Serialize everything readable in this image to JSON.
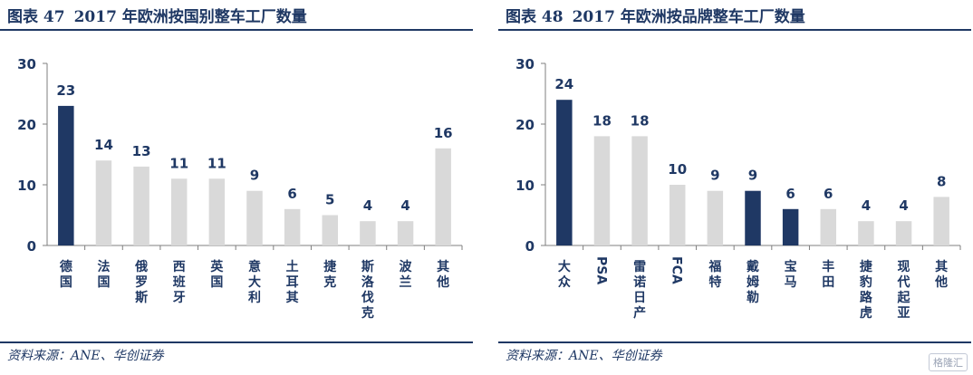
{
  "colors": {
    "dark": "#1f3864",
    "light": "#d9d9d9",
    "text": "#1f3864"
  },
  "charts": [
    {
      "figure_label": "图表 47",
      "title": "2017 年欧洲按国别整车工厂数量",
      "source": "资料来源：ANE、华创证券"
    },
    {
      "figure_label": "图表 48",
      "title": "2017 年欧洲按品牌整车工厂数量",
      "source": "资料来源：ANE、华创证券"
    }
  ],
  "chart_data": [
    {
      "type": "bar",
      "title": "2017 年欧洲按国别整车工厂数量",
      "categories": [
        "德国",
        "法国",
        "俄罗斯",
        "西班牙",
        "英国",
        "意大利",
        "土耳其",
        "捷克",
        "斯洛伐克",
        "波兰",
        "其他"
      ],
      "values": [
        23,
        14,
        13,
        11,
        11,
        9,
        6,
        5,
        4,
        4,
        16
      ],
      "highlight": [
        true,
        false,
        false,
        false,
        false,
        false,
        false,
        false,
        false,
        false,
        false
      ],
      "yticks": [
        0,
        10,
        20,
        30
      ],
      "ylim": [
        0,
        30
      ],
      "grid": false,
      "data_labels": true
    },
    {
      "type": "bar",
      "title": "2017 年欧洲按品牌整车工厂数量",
      "categories": [
        "大众",
        "PSA",
        "雷诺日产",
        "FCA",
        "福特",
        "戴姆勒",
        "宝马",
        "丰田",
        "捷豹路虎",
        "现代起亚",
        "其他"
      ],
      "values": [
        24,
        18,
        18,
        10,
        9,
        9,
        6,
        6,
        4,
        4,
        8
      ],
      "highlight": [
        true,
        false,
        false,
        false,
        false,
        true,
        true,
        false,
        false,
        false,
        false
      ],
      "yticks": [
        0,
        10,
        20,
        30
      ],
      "ylim": [
        0,
        30
      ],
      "grid": false,
      "data_labels": true
    }
  ],
  "watermark": "格隆汇"
}
